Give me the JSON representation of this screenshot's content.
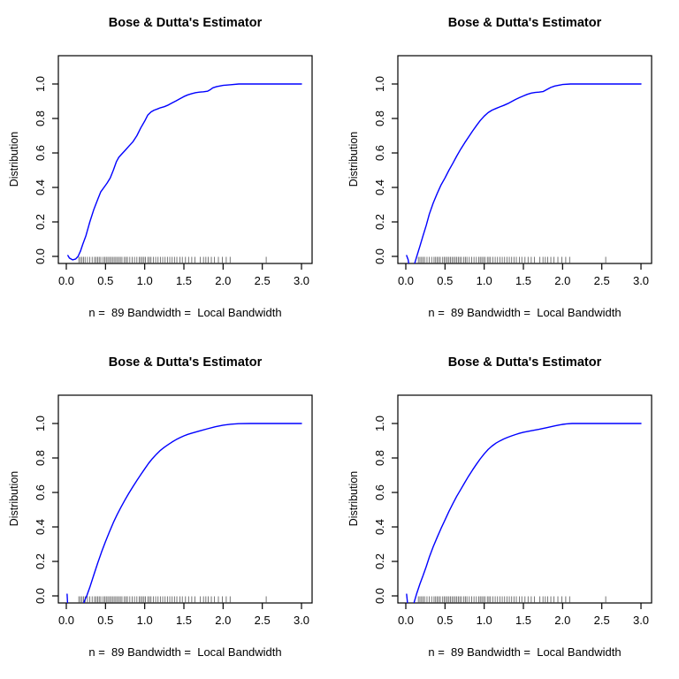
{
  "page": {
    "background": "#ffffff"
  },
  "chart_data": [
    {
      "type": "line",
      "title": "Bose & Dutta's Estimator",
      "sublabel": "n =  89 Bandwidth =  Local Bandwidth",
      "ylabel": "Distribution",
      "xlim": [
        -0.12,
        3.12
      ],
      "ylim": [
        -0.04,
        1.16
      ],
      "grid": false,
      "legend": "none",
      "x_ticks": [
        0,
        0.5,
        1,
        1.5,
        2,
        2.5,
        3
      ],
      "x_tick_labels": [
        "0.0",
        "0.5",
        "1.0",
        "1.5",
        "2.0",
        "2.5",
        "3.0"
      ],
      "y_ticks": [
        0,
        0.2,
        0.4,
        0.6,
        0.8,
        1
      ],
      "y_tick_labels": [
        "0.0",
        "0.2",
        "0.4",
        "0.6",
        "0.8",
        "1.0"
      ],
      "line_color": "#0000ff",
      "curve": [
        [
          0.02,
          0.005
        ],
        [
          0.04,
          -0.01
        ],
        [
          0.08,
          -0.02
        ],
        [
          0.12,
          -0.015
        ],
        [
          0.15,
          0.0
        ],
        [
          0.18,
          0.03
        ],
        [
          0.21,
          0.07
        ],
        [
          0.25,
          0.12
        ],
        [
          0.3,
          0.2
        ],
        [
          0.35,
          0.27
        ],
        [
          0.4,
          0.33
        ],
        [
          0.44,
          0.375
        ],
        [
          0.48,
          0.4
        ],
        [
          0.52,
          0.425
        ],
        [
          0.56,
          0.455
        ],
        [
          0.6,
          0.5
        ],
        [
          0.64,
          0.55
        ],
        [
          0.67,
          0.575
        ],
        [
          0.7,
          0.59
        ],
        [
          0.75,
          0.615
        ],
        [
          0.8,
          0.64
        ],
        [
          0.85,
          0.665
        ],
        [
          0.9,
          0.7
        ],
        [
          0.95,
          0.745
        ],
        [
          1.0,
          0.785
        ],
        [
          1.04,
          0.82
        ],
        [
          1.08,
          0.838
        ],
        [
          1.12,
          0.848
        ],
        [
          1.16,
          0.855
        ],
        [
          1.2,
          0.862
        ],
        [
          1.25,
          0.868
        ],
        [
          1.3,
          0.878
        ],
        [
          1.35,
          0.89
        ],
        [
          1.4,
          0.902
        ],
        [
          1.45,
          0.915
        ],
        [
          1.5,
          0.927
        ],
        [
          1.55,
          0.937
        ],
        [
          1.6,
          0.944
        ],
        [
          1.65,
          0.95
        ],
        [
          1.7,
          0.953
        ],
        [
          1.75,
          0.955
        ],
        [
          1.8,
          0.958
        ],
        [
          1.83,
          0.965
        ],
        [
          1.87,
          0.978
        ],
        [
          1.92,
          0.985
        ],
        [
          2.0,
          0.992
        ],
        [
          2.1,
          0.996
        ],
        [
          2.2,
          1.0
        ],
        [
          2.4,
          1.0
        ],
        [
          2.7,
          1.0
        ],
        [
          3.0,
          1.0
        ]
      ],
      "rug_x": [
        0.16,
        0.18,
        0.2,
        0.22,
        0.24,
        0.27,
        0.3,
        0.33,
        0.36,
        0.38,
        0.4,
        0.42,
        0.44,
        0.47,
        0.49,
        0.51,
        0.53,
        0.55,
        0.57,
        0.59,
        0.61,
        0.63,
        0.65,
        0.67,
        0.69,
        0.71,
        0.74,
        0.76,
        0.78,
        0.81,
        0.84,
        0.87,
        0.9,
        0.93,
        0.95,
        0.97,
        0.99,
        1.01,
        1.04,
        1.06,
        1.08,
        1.11,
        1.14,
        1.17,
        1.2,
        1.23,
        1.26,
        1.29,
        1.32,
        1.35,
        1.38,
        1.41,
        1.45,
        1.48,
        1.52,
        1.56,
        1.6,
        1.64,
        1.71,
        1.75,
        1.78,
        1.81,
        1.85,
        1.89,
        1.94,
        1.99,
        2.04,
        2.09,
        2.55
      ]
    },
    {
      "type": "line",
      "title": "Bose & Dutta's Estimator",
      "sublabel": "n =  89 Bandwidth =  Local Bandwidth",
      "ylabel": "Distribution",
      "xlim": [
        -0.12,
        3.12
      ],
      "ylim": [
        -0.04,
        1.16
      ],
      "grid": false,
      "legend": "none",
      "x_ticks": [
        0,
        0.5,
        1,
        1.5,
        2,
        2.5,
        3
      ],
      "x_tick_labels": [
        "0.0",
        "0.5",
        "1.0",
        "1.5",
        "2.0",
        "2.5",
        "3.0"
      ],
      "y_ticks": [
        0,
        0.2,
        0.4,
        0.6,
        0.8,
        1
      ],
      "y_tick_labels": [
        "0.0",
        "0.2",
        "0.4",
        "0.6",
        "0.8",
        "1.0"
      ],
      "line_color": "#0000ff",
      "curve": [
        [
          0.01,
          0.005
        ],
        [
          0.03,
          -0.02
        ],
        [
          0.05,
          -0.08
        ],
        [
          0.09,
          -0.08
        ],
        [
          0.12,
          -0.03
        ],
        [
          0.15,
          0.015
        ],
        [
          0.18,
          0.06
        ],
        [
          0.22,
          0.12
        ],
        [
          0.26,
          0.18
        ],
        [
          0.3,
          0.245
        ],
        [
          0.35,
          0.31
        ],
        [
          0.4,
          0.365
        ],
        [
          0.45,
          0.415
        ],
        [
          0.5,
          0.455
        ],
        [
          0.55,
          0.5
        ],
        [
          0.6,
          0.54
        ],
        [
          0.65,
          0.582
        ],
        [
          0.7,
          0.622
        ],
        [
          0.75,
          0.658
        ],
        [
          0.8,
          0.692
        ],
        [
          0.85,
          0.726
        ],
        [
          0.9,
          0.758
        ],
        [
          0.95,
          0.788
        ],
        [
          1.0,
          0.814
        ],
        [
          1.05,
          0.834
        ],
        [
          1.1,
          0.848
        ],
        [
          1.15,
          0.858
        ],
        [
          1.2,
          0.867
        ],
        [
          1.25,
          0.876
        ],
        [
          1.3,
          0.886
        ],
        [
          1.35,
          0.898
        ],
        [
          1.4,
          0.91
        ],
        [
          1.45,
          0.921
        ],
        [
          1.5,
          0.931
        ],
        [
          1.55,
          0.94
        ],
        [
          1.6,
          0.947
        ],
        [
          1.65,
          0.951
        ],
        [
          1.7,
          0.953
        ],
        [
          1.75,
          0.956
        ],
        [
          1.8,
          0.968
        ],
        [
          1.85,
          0.98
        ],
        [
          1.9,
          0.988
        ],
        [
          1.95,
          0.993
        ],
        [
          2.0,
          0.997
        ],
        [
          2.1,
          1.0
        ],
        [
          2.5,
          1.0
        ],
        [
          3.0,
          1.0
        ]
      ],
      "rug_x": [
        0.16,
        0.18,
        0.2,
        0.22,
        0.24,
        0.27,
        0.3,
        0.33,
        0.36,
        0.38,
        0.4,
        0.42,
        0.44,
        0.47,
        0.49,
        0.51,
        0.53,
        0.55,
        0.57,
        0.59,
        0.61,
        0.63,
        0.65,
        0.67,
        0.69,
        0.71,
        0.74,
        0.76,
        0.78,
        0.81,
        0.84,
        0.87,
        0.9,
        0.93,
        0.95,
        0.97,
        0.99,
        1.01,
        1.04,
        1.06,
        1.08,
        1.11,
        1.14,
        1.17,
        1.2,
        1.23,
        1.26,
        1.29,
        1.32,
        1.35,
        1.38,
        1.41,
        1.45,
        1.48,
        1.52,
        1.56,
        1.6,
        1.64,
        1.71,
        1.75,
        1.78,
        1.81,
        1.85,
        1.89,
        1.94,
        1.99,
        2.04,
        2.09,
        2.55
      ]
    },
    {
      "type": "line",
      "title": "Bose & Dutta's Estimator",
      "sublabel": "n =  89 Bandwidth =  Local Bandwidth",
      "ylabel": "Distribution",
      "xlim": [
        -0.12,
        3.12
      ],
      "ylim": [
        -0.04,
        1.16
      ],
      "grid": false,
      "legend": "none",
      "x_ticks": [
        0,
        0.5,
        1,
        1.5,
        2,
        2.5,
        3
      ],
      "x_tick_labels": [
        "0.0",
        "0.5",
        "1.0",
        "1.5",
        "2.0",
        "2.5",
        "3.0"
      ],
      "y_ticks": [
        0,
        0.2,
        0.4,
        0.6,
        0.8,
        1
      ],
      "y_tick_labels": [
        "0.0",
        "0.2",
        "0.4",
        "0.6",
        "0.8",
        "1.0"
      ],
      "line_color": "#0000ff",
      "curve": [
        [
          0.01,
          0.01
        ],
        [
          0.02,
          -0.08
        ],
        [
          0.2,
          -0.08
        ],
        [
          0.23,
          -0.03
        ],
        [
          0.26,
          0.0
        ],
        [
          0.3,
          0.05
        ],
        [
          0.35,
          0.12
        ],
        [
          0.4,
          0.19
        ],
        [
          0.45,
          0.255
        ],
        [
          0.5,
          0.315
        ],
        [
          0.55,
          0.372
        ],
        [
          0.6,
          0.425
        ],
        [
          0.65,
          0.473
        ],
        [
          0.7,
          0.517
        ],
        [
          0.75,
          0.558
        ],
        [
          0.8,
          0.597
        ],
        [
          0.85,
          0.634
        ],
        [
          0.9,
          0.669
        ],
        [
          0.95,
          0.703
        ],
        [
          1.0,
          0.737
        ],
        [
          1.05,
          0.769
        ],
        [
          1.1,
          0.797
        ],
        [
          1.15,
          0.822
        ],
        [
          1.2,
          0.844
        ],
        [
          1.25,
          0.862
        ],
        [
          1.3,
          0.878
        ],
        [
          1.35,
          0.893
        ],
        [
          1.4,
          0.906
        ],
        [
          1.45,
          0.918
        ],
        [
          1.5,
          0.928
        ],
        [
          1.55,
          0.937
        ],
        [
          1.6,
          0.944
        ],
        [
          1.7,
          0.957
        ],
        [
          1.8,
          0.969
        ],
        [
          1.9,
          0.981
        ],
        [
          2.0,
          0.99
        ],
        [
          2.1,
          0.996
        ],
        [
          2.2,
          0.999
        ],
        [
          2.35,
          1.0
        ],
        [
          2.7,
          1.0
        ],
        [
          3.0,
          1.0
        ]
      ],
      "rug_x": [
        0.16,
        0.18,
        0.2,
        0.22,
        0.24,
        0.27,
        0.3,
        0.33,
        0.36,
        0.38,
        0.4,
        0.42,
        0.44,
        0.47,
        0.49,
        0.51,
        0.53,
        0.55,
        0.57,
        0.59,
        0.61,
        0.63,
        0.65,
        0.67,
        0.69,
        0.71,
        0.74,
        0.76,
        0.78,
        0.81,
        0.84,
        0.87,
        0.9,
        0.93,
        0.95,
        0.97,
        0.99,
        1.01,
        1.04,
        1.06,
        1.08,
        1.11,
        1.14,
        1.17,
        1.2,
        1.23,
        1.26,
        1.29,
        1.32,
        1.35,
        1.38,
        1.41,
        1.45,
        1.48,
        1.52,
        1.56,
        1.6,
        1.64,
        1.71,
        1.75,
        1.78,
        1.81,
        1.85,
        1.89,
        1.94,
        1.99,
        2.04,
        2.09,
        2.55
      ]
    },
    {
      "type": "line",
      "title": "Bose & Dutta's Estimator",
      "sublabel": "n =  89 Bandwidth =  Local Bandwidth",
      "ylabel": "Distribution",
      "xlim": [
        -0.12,
        3.12
      ],
      "ylim": [
        -0.04,
        1.16
      ],
      "grid": false,
      "legend": "none",
      "x_ticks": [
        0,
        0.5,
        1,
        1.5,
        2,
        2.5,
        3
      ],
      "x_tick_labels": [
        "0.0",
        "0.5",
        "1.0",
        "1.5",
        "2.0",
        "2.5",
        "3.0"
      ],
      "y_ticks": [
        0,
        0.2,
        0.4,
        0.6,
        0.8,
        1
      ],
      "y_tick_labels": [
        "0.0",
        "0.2",
        "0.4",
        "0.6",
        "0.8",
        "1.0"
      ],
      "line_color": "#0000ff",
      "curve": [
        [
          0.01,
          0.01
        ],
        [
          0.03,
          -0.08
        ],
        [
          0.08,
          -0.08
        ],
        [
          0.11,
          -0.03
        ],
        [
          0.14,
          0.015
        ],
        [
          0.18,
          0.07
        ],
        [
          0.22,
          0.118
        ],
        [
          0.26,
          0.17
        ],
        [
          0.3,
          0.225
        ],
        [
          0.35,
          0.285
        ],
        [
          0.4,
          0.34
        ],
        [
          0.45,
          0.392
        ],
        [
          0.5,
          0.44
        ],
        [
          0.55,
          0.49
        ],
        [
          0.6,
          0.535
        ],
        [
          0.65,
          0.578
        ],
        [
          0.7,
          0.617
        ],
        [
          0.75,
          0.656
        ],
        [
          0.8,
          0.694
        ],
        [
          0.85,
          0.73
        ],
        [
          0.9,
          0.763
        ],
        [
          0.95,
          0.795
        ],
        [
          1.0,
          0.824
        ],
        [
          1.05,
          0.849
        ],
        [
          1.1,
          0.869
        ],
        [
          1.15,
          0.886
        ],
        [
          1.2,
          0.899
        ],
        [
          1.25,
          0.91
        ],
        [
          1.3,
          0.92
        ],
        [
          1.35,
          0.928
        ],
        [
          1.4,
          0.936
        ],
        [
          1.45,
          0.943
        ],
        [
          1.5,
          0.949
        ],
        [
          1.6,
          0.958
        ],
        [
          1.7,
          0.966
        ],
        [
          1.8,
          0.976
        ],
        [
          1.9,
          0.986
        ],
        [
          1.95,
          0.991
        ],
        [
          2.0,
          0.995
        ],
        [
          2.05,
          0.998
        ],
        [
          2.12,
          1.0
        ],
        [
          2.5,
          1.0
        ],
        [
          3.0,
          1.0
        ]
      ],
      "rug_x": [
        0.16,
        0.18,
        0.2,
        0.22,
        0.24,
        0.27,
        0.3,
        0.33,
        0.36,
        0.38,
        0.4,
        0.42,
        0.44,
        0.47,
        0.49,
        0.51,
        0.53,
        0.55,
        0.57,
        0.59,
        0.61,
        0.63,
        0.65,
        0.67,
        0.69,
        0.71,
        0.74,
        0.76,
        0.78,
        0.81,
        0.84,
        0.87,
        0.9,
        0.93,
        0.95,
        0.97,
        0.99,
        1.01,
        1.04,
        1.06,
        1.08,
        1.11,
        1.14,
        1.17,
        1.2,
        1.23,
        1.26,
        1.29,
        1.32,
        1.35,
        1.38,
        1.41,
        1.45,
        1.48,
        1.52,
        1.56,
        1.6,
        1.64,
        1.71,
        1.75,
        1.78,
        1.81,
        1.85,
        1.89,
        1.94,
        1.99,
        2.04,
        2.09,
        2.55
      ]
    }
  ]
}
